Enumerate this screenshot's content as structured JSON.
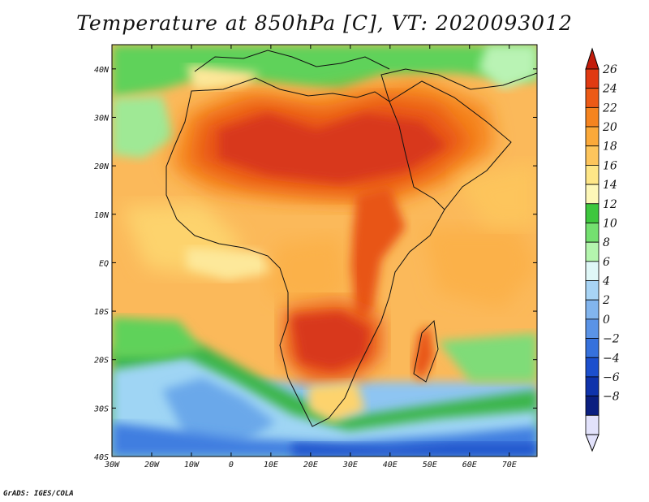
{
  "title": "Temperature at 850hPa [C], VT: 2020093012",
  "credit": "GrADS: IGES/COLA",
  "map": {
    "lon_range": [
      -30,
      77
    ],
    "lat_range": [
      -40,
      45
    ],
    "lon_ticks": [
      {
        "value": -30,
        "label": "30W"
      },
      {
        "value": -20,
        "label": "20W"
      },
      {
        "value": -10,
        "label": "10W"
      },
      {
        "value": 0,
        "label": "0"
      },
      {
        "value": 10,
        "label": "10E"
      },
      {
        "value": 20,
        "label": "20E"
      },
      {
        "value": 30,
        "label": "30E"
      },
      {
        "value": 40,
        "label": "40E"
      },
      {
        "value": 50,
        "label": "50E"
      },
      {
        "value": 60,
        "label": "60E"
      },
      {
        "value": 70,
        "label": "70E"
      }
    ],
    "lat_ticks": [
      {
        "value": 40,
        "label": "40N"
      },
      {
        "value": 30,
        "label": "30N"
      },
      {
        "value": 20,
        "label": "20N"
      },
      {
        "value": 10,
        "label": "10N"
      },
      {
        "value": 0,
        "label": "EQ"
      },
      {
        "value": -10,
        "label": "10S"
      },
      {
        "value": -20,
        "label": "20S"
      },
      {
        "value": -30,
        "label": "30S"
      },
      {
        "value": -40,
        "label": "40S"
      }
    ]
  },
  "colorbar": {
    "levels": [
      "26",
      "24",
      "22",
      "20",
      "18",
      "16",
      "14",
      "12",
      "10",
      "8",
      "6",
      "4",
      "2",
      "0",
      "−2",
      "−4",
      "−6",
      "−8"
    ],
    "colors": [
      "#e03a12",
      "#ec5a16",
      "#f5841f",
      "#fba93a",
      "#fdc55c",
      "#fee687",
      "#fdf7b8",
      "#3ec73e",
      "#74e070",
      "#b4f5ae",
      "#dff7f7",
      "#a8d4f5",
      "#82b5ee",
      "#5a93e6",
      "#3671dc",
      "#1c4fcd",
      "#0f33ab",
      "#0b1f80",
      "#e2e2fb"
    ],
    "top_arrow_color": "#c21c0b",
    "bottom_arrow_color": "#e2e2fb"
  }
}
